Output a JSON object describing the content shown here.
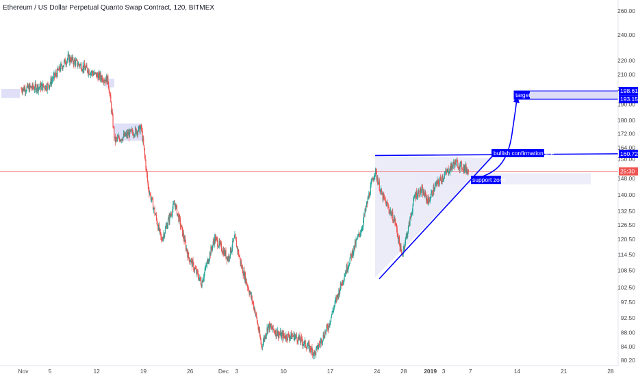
{
  "header": {
    "title": "Ethereum / US Dollar Perpetual Quanto Swap Contract, 120, BITMEX"
  },
  "colors": {
    "up": "#26a69a",
    "down": "#ef5350",
    "drawing": "#0000ff",
    "zone": "#d4d4f5",
    "price_line": "#f08080",
    "last_price_bg": "#ef5350",
    "label_bg": "#0000ff",
    "grid_text": "#4a4a4a"
  },
  "annotations": {
    "bullish_line_label": "bullish confirmation line",
    "support_zone_label": "support zone",
    "target_label": "target"
  },
  "price_badges": {
    "target_high": "198.61",
    "target_low": "193.15",
    "bullish_line": "160.72",
    "last_price": "25:30"
  },
  "chart_data": {
    "type": "candlestick",
    "y_scale": "log",
    "ylim": [
      78,
      275
    ],
    "y_ticks": [
      "260.00",
      "240.00",
      "220.00",
      "210.00",
      "200.00",
      "190.00",
      "180.00",
      "172.00",
      "164.00",
      "158.00",
      "148.00",
      "140.00",
      "132.50",
      "126.50",
      "120.50",
      "114.50",
      "108.50",
      "102.50",
      "97.50",
      "92.50",
      "88.00",
      "84.00",
      "80.20"
    ],
    "x_ticks": [
      "Nov",
      "5",
      "12",
      "19",
      "26",
      "Dec",
      "3",
      "10",
      "17",
      "24",
      "28",
      "2019",
      "3",
      "7",
      "14",
      "21",
      "28"
    ],
    "price_levels": {
      "last_price": 151.5,
      "bullish_confirmation": 160.72,
      "target_high": 198.61,
      "target_low": 193.15
    },
    "keypoints": [
      {
        "date": "Nov 1",
        "close": 200
      },
      {
        "date": "Nov 5",
        "close": 202
      },
      {
        "date": "Nov 8",
        "close": 222
      },
      {
        "date": "Nov 12",
        "close": 210
      },
      {
        "date": "Nov 14",
        "close": 206
      },
      {
        "date": "Nov 15",
        "close": 168
      },
      {
        "date": "Nov 19",
        "close": 175
      },
      {
        "date": "Nov 20",
        "close": 144
      },
      {
        "date": "Nov 22",
        "close": 120
      },
      {
        "date": "Nov 24",
        "close": 136
      },
      {
        "date": "Nov 26",
        "close": 114
      },
      {
        "date": "Nov 28",
        "close": 104
      },
      {
        "date": "Nov 30",
        "close": 121
      },
      {
        "date": "Dec 2",
        "close": 113
      },
      {
        "date": "Dec 3",
        "close": 121
      },
      {
        "date": "Dec 4",
        "close": 110
      },
      {
        "date": "Dec 6",
        "close": 95
      },
      {
        "date": "Dec 7",
        "close": 84
      },
      {
        "date": "Dec 8",
        "close": 90
      },
      {
        "date": "Dec 10",
        "close": 87
      },
      {
        "date": "Dec 12",
        "close": 87
      },
      {
        "date": "Dec 14",
        "close": 84
      },
      {
        "date": "Dec 15",
        "close": 82
      },
      {
        "date": "Dec 17",
        "close": 90
      },
      {
        "date": "Dec 19",
        "close": 104
      },
      {
        "date": "Dec 21",
        "close": 118
      },
      {
        "date": "Dec 22",
        "close": 125
      },
      {
        "date": "Dec 24",
        "close": 152
      },
      {
        "date": "Dec 25",
        "close": 140
      },
      {
        "date": "Dec 27",
        "close": 128
      },
      {
        "date": "Dec 28",
        "close": 114
      },
      {
        "date": "Dec 29",
        "close": 125
      },
      {
        "date": "Dec 30",
        "close": 140
      },
      {
        "date": "Dec 31",
        "close": 142
      },
      {
        "date": "Jan 1",
        "close": 137
      },
      {
        "date": "Jan 2",
        "close": 144
      },
      {
        "date": "Jan 3",
        "close": 148
      },
      {
        "date": "Jan 5",
        "close": 156
      },
      {
        "date": "Jan 7",
        "close": 152
      }
    ]
  }
}
